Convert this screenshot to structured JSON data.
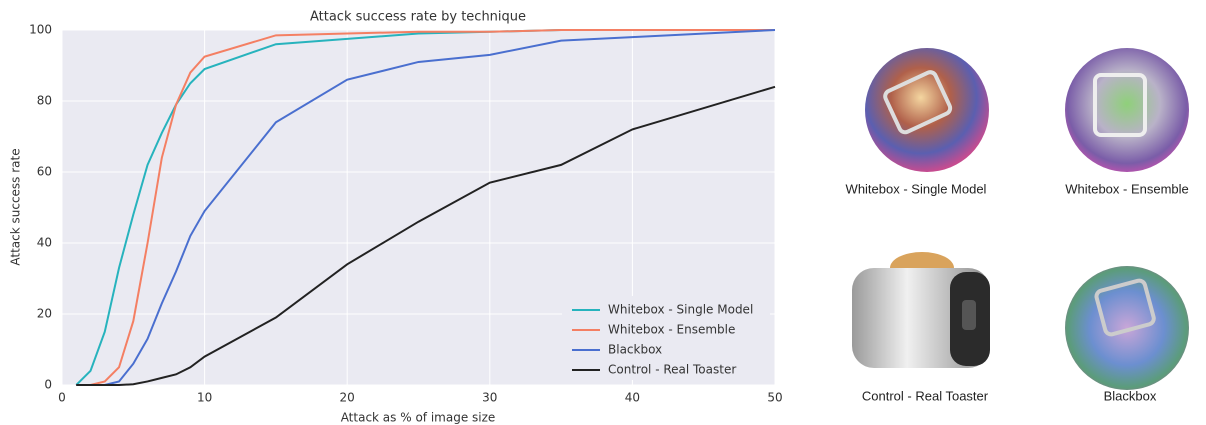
{
  "chart_data": {
    "type": "line",
    "title": "Attack success rate by technique",
    "x_label": "Attack as % of image size",
    "y_label": "Attack success rate",
    "x": [
      1,
      2,
      3,
      4,
      5,
      6,
      7,
      8,
      9,
      10,
      15,
      20,
      25,
      30,
      35,
      40,
      50
    ],
    "series": [
      {
        "name": "Whitebox - Single Model",
        "color": "#27b3bd",
        "values": [
          0,
          4,
          15,
          33,
          48,
          62,
          71,
          79,
          85,
          89,
          96,
          97.5,
          99,
          99.5,
          100,
          100,
          100
        ]
      },
      {
        "name": "Whitebox - Ensemble",
        "color": "#f47f63",
        "values": [
          0,
          0,
          1,
          5,
          18,
          40,
          64,
          79,
          88,
          92.5,
          98.5,
          99,
          99.5,
          99.5,
          100,
          100,
          100
        ]
      },
      {
        "name": "Blackbox",
        "color": "#4a6fcf",
        "values": [
          0,
          0,
          0,
          1,
          6,
          13,
          23,
          32,
          42,
          49,
          74,
          86,
          91,
          93,
          97,
          98,
          100
        ]
      },
      {
        "name": "Control - Real Toaster",
        "color": "#222222",
        "values": [
          0,
          0,
          0,
          0,
          0.2,
          1,
          2,
          3,
          5,
          8,
          19,
          34,
          46,
          57,
          62,
          72,
          84
        ]
      }
    ],
    "xlim": [
      0,
      50
    ],
    "xticks": [
      0,
      10,
      20,
      30,
      40,
      50
    ],
    "ylim": [
      0,
      100
    ],
    "yticks": [
      0,
      20,
      40,
      60,
      80,
      100
    ],
    "grid": true,
    "legend": "lower right"
  },
  "panels": [
    {
      "caption": "Whitebox - Single Model"
    },
    {
      "caption": "Whitebox - Ensemble"
    },
    {
      "caption": "Control - Real Toaster"
    },
    {
      "caption": "Blackbox"
    }
  ]
}
